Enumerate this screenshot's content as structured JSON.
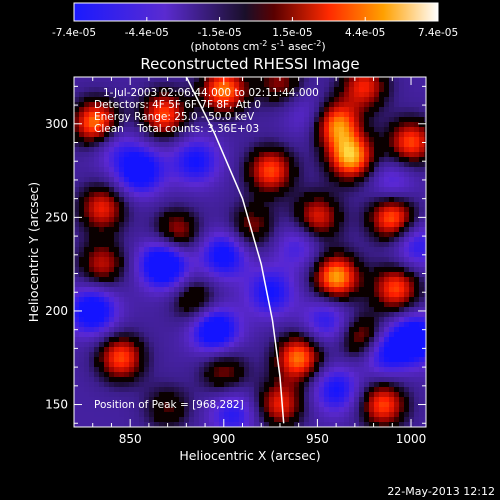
{
  "chart_data": {
    "type": "heatmap",
    "title": "Reconstructed RHESSI Image",
    "xlabel": "Heliocentric X (arcsec)",
    "ylabel": "Heliocentric Y (arcsec)",
    "xlim": [
      820,
      1008
    ],
    "ylim": [
      138,
      325
    ],
    "xticks": [
      850,
      900,
      950,
      1000
    ],
    "yticks": [
      150,
      200,
      250,
      300
    ],
    "colorbar": {
      "ticks": [
        "-7.4e-05",
        "-4.4e-05",
        "-1.5e-05",
        "1.5e-05",
        "4.4e-05",
        "7.4e-05"
      ],
      "range": [
        -7.4e-05,
        7.4e-05
      ],
      "unit_main": "(photons cm",
      "unit_sup1": "-2",
      "unit_mid": " s",
      "unit_sup2": "-1",
      "unit_end": " asec",
      "unit_sup3": "-2",
      "unit_close": ")"
    },
    "annotations": [
      "1-Jul-2003 02:06:44.000 to 02:11:44.000",
      "Detectors: 4F 5F 6F 7F 8F, Att 0",
      "Energy Range: 25.0 - 50.0 keV",
      "Clean    Total counts: 3.36E+03"
    ],
    "peak_label": "Position of Peak = [968,282]",
    "peak": [
      968,
      282
    ],
    "limb_curve": [
      [
        880,
        325
      ],
      [
        895,
        295
      ],
      [
        910,
        260
      ],
      [
        920,
        225
      ],
      [
        926,
        195
      ],
      [
        930,
        165
      ],
      [
        932,
        140
      ]
    ],
    "blobs": [
      {
        "x": 832,
        "y": 300,
        "v": 1.0
      },
      {
        "x": 868,
        "y": 305,
        "v": 0.8
      },
      {
        "x": 900,
        "y": 318,
        "v": 0.9
      },
      {
        "x": 930,
        "y": 322,
        "v": 0.5
      },
      {
        "x": 960,
        "y": 300,
        "v": 0.9
      },
      {
        "x": 975,
        "y": 320,
        "v": 0.7
      },
      {
        "x": 968,
        "y": 282,
        "v": 1.0
      },
      {
        "x": 1000,
        "y": 290,
        "v": 0.8
      },
      {
        "x": 925,
        "y": 275,
        "v": 0.8
      },
      {
        "x": 835,
        "y": 255,
        "v": 0.7
      },
      {
        "x": 875,
        "y": 242,
        "v": 0.6
      },
      {
        "x": 915,
        "y": 245,
        "v": 0.5
      },
      {
        "x": 950,
        "y": 250,
        "v": 0.7
      },
      {
        "x": 990,
        "y": 250,
        "v": 0.9
      },
      {
        "x": 835,
        "y": 225,
        "v": 0.6
      },
      {
        "x": 885,
        "y": 205,
        "v": 0.5
      },
      {
        "x": 960,
        "y": 218,
        "v": 1.0
      },
      {
        "x": 992,
        "y": 212,
        "v": 0.8
      },
      {
        "x": 845,
        "y": 175,
        "v": 0.8
      },
      {
        "x": 900,
        "y": 168,
        "v": 0.5
      },
      {
        "x": 940,
        "y": 175,
        "v": 0.9
      },
      {
        "x": 975,
        "y": 185,
        "v": 0.7
      },
      {
        "x": 930,
        "y": 150,
        "v": 0.7
      },
      {
        "x": 985,
        "y": 150,
        "v": 0.8
      },
      {
        "x": 870,
        "y": 148,
        "v": 0.4
      },
      {
        "x": 855,
        "y": 275,
        "v": -0.8
      },
      {
        "x": 885,
        "y": 280,
        "v": -0.6
      },
      {
        "x": 840,
        "y": 290,
        "v": -0.4
      },
      {
        "x": 868,
        "y": 225,
        "v": -1.0
      },
      {
        "x": 900,
        "y": 230,
        "v": -0.7
      },
      {
        "x": 925,
        "y": 210,
        "v": -0.6
      },
      {
        "x": 895,
        "y": 190,
        "v": -0.9
      },
      {
        "x": 830,
        "y": 200,
        "v": -0.8
      },
      {
        "x": 955,
        "y": 195,
        "v": -0.5
      },
      {
        "x": 985,
        "y": 178,
        "v": -0.7
      },
      {
        "x": 1002,
        "y": 185,
        "v": -0.9
      },
      {
        "x": 960,
        "y": 158,
        "v": -0.6
      },
      {
        "x": 905,
        "y": 145,
        "v": -0.5
      },
      {
        "x": 945,
        "y": 305,
        "v": -0.3
      },
      {
        "x": 990,
        "y": 268,
        "v": -0.4
      },
      {
        "x": 1003,
        "y": 235,
        "v": -0.5
      },
      {
        "x": 940,
        "y": 235,
        "v": -0.4
      }
    ]
  },
  "footer": {
    "timestamp": "22-May-2013 12:12"
  }
}
